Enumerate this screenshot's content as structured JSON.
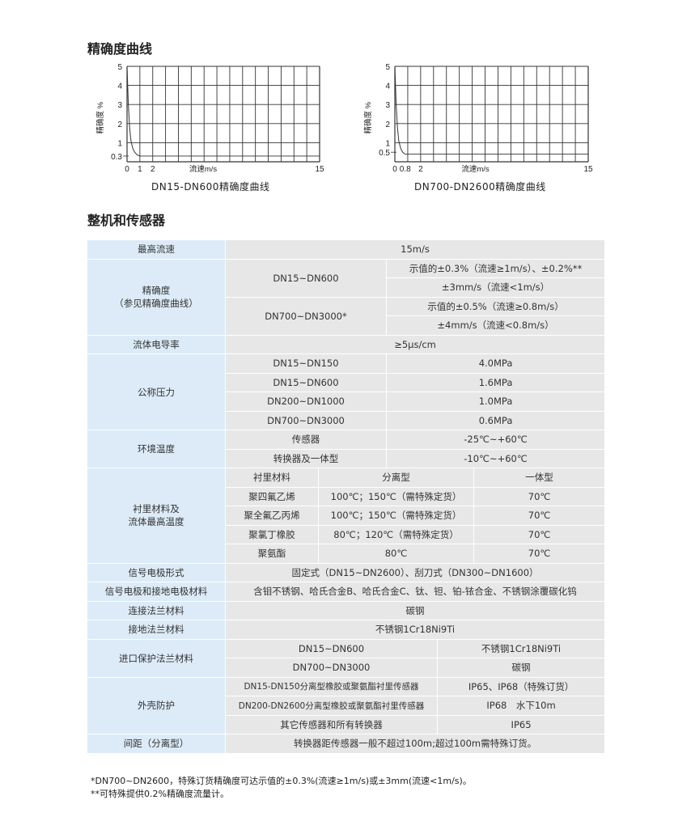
{
  "section1_title": "精确度曲线",
  "section2_title": "整机和传感器",
  "chart_data": [
    {
      "type": "line",
      "title": "DN15-DN600精确度曲线",
      "xlabel": "流速m/s",
      "ylabel": "精确度 %",
      "xticks": [
        "0",
        "1",
        "2",
        "15"
      ],
      "yticks": [
        "5",
        "4",
        "3",
        "2",
        "1",
        "0.3"
      ],
      "xlim": [
        0,
        15
      ],
      "ylim": [
        0,
        5
      ],
      "grid": true,
      "x": [
        0,
        0.05,
        0.1,
        0.2,
        0.3,
        0.45,
        0.6,
        0.8,
        1.0,
        15
      ],
      "y": [
        5,
        4,
        3,
        1.8,
        1.1,
        0.7,
        0.5,
        0.35,
        0.3,
        0.3
      ]
    },
    {
      "type": "line",
      "title": "DN700-DN2600精确度曲线",
      "xlabel": "流速m/s",
      "ylabel": "精确度 %",
      "xticks": [
        "0",
        "0.8",
        "2",
        "15"
      ],
      "yticks": [
        "5",
        "4",
        "3",
        "2",
        "1",
        "0.5"
      ],
      "xlim": [
        0,
        15
      ],
      "ylim": [
        0,
        5
      ],
      "grid": true,
      "x": [
        0,
        0.05,
        0.1,
        0.2,
        0.3,
        0.45,
        0.6,
        0.8,
        15
      ],
      "y": [
        5,
        4,
        3,
        1.8,
        1.1,
        0.7,
        0.5,
        0.4,
        0.4
      ]
    }
  ],
  "table": {
    "max_speed": {
      "k": "最高流速",
      "v": "15m/s"
    },
    "accuracy": {
      "k1": "精确度",
      "k2": "（参见精确度曲线）",
      "a": "DN15~DN600",
      "a1": "示值的±0.3%（流速≥1m/s）、±0.2%**",
      "a2": "±3mm/s（流速<1m/s）",
      "b": "DN700~DN3000*",
      "b1": "示值的±0.5%（流速≥0.8m/s）",
      "b2": "±4mm/s（流速<0.8m/s）"
    },
    "conductivity": {
      "k": "流体电导率",
      "v": "≥5μs/cm"
    },
    "pressure": {
      "k": "公称压力",
      "rows": [
        [
          "DN15~DN150",
          "4.0MPa"
        ],
        [
          "DN15~DN600",
          "1.6MPa"
        ],
        [
          "DN200~DN1000",
          "1.0MPa"
        ],
        [
          "DN700~DN3000",
          "0.6MPa"
        ]
      ]
    },
    "temperature": {
      "k": "环境温度",
      "rows": [
        [
          "传感器",
          "-25℃~+60℃"
        ],
        [
          "转换器及一体型",
          "-10℃~+60℃"
        ]
      ]
    },
    "lining": {
      "k1": "衬里材料及",
      "k2": "流体最高温度",
      "header": [
        "衬里材料",
        "分离型",
        "一体型"
      ],
      "rows": [
        [
          "聚四氟乙烯",
          "100℃；150℃（需特殊定货）",
          "70℃"
        ],
        [
          "聚全氟乙丙烯",
          "100℃；150℃（需特殊定货）",
          "70℃"
        ],
        [
          "聚氯丁橡胶",
          "80℃；120℃（需特殊定货）",
          "70℃"
        ],
        [
          "聚氨酯",
          "80℃",
          "70℃"
        ]
      ]
    },
    "electrode_form": {
      "k": "信号电极形式",
      "v": "固定式（DN15~DN2600）、刮刀式（DN300~DN1600）"
    },
    "electrode_material": {
      "k": "信号电极和接地电极材料",
      "v": "含钼不锈钢、哈氏合金B、哈氏合金C、钛、钽、铂-铱合金、不锈钢涂覆碳化钨"
    },
    "flange": {
      "k": "连接法兰材料",
      "v": "碳钢"
    },
    "ground_flange": {
      "k": "接地法兰材料",
      "v": "不锈钢1Cr18Ni9Ti"
    },
    "inlet": {
      "k": "进口保护法兰材料",
      "rows": [
        [
          "DN15~DN600",
          "不锈钢1Cr18Ni9Ti"
        ],
        [
          "DN700~DN3000",
          "碳钢"
        ]
      ]
    },
    "shell": {
      "k": "外壳防护",
      "rows": [
        [
          "DN15-DN150分离型橡胶或聚氨酯衬里传感器",
          "IP65、IP68（特殊订货）"
        ],
        [
          "DN200-DN2600分离型橡胶或聚氨酯衬里传感器",
          "IP68　水下10m"
        ],
        [
          "其它传感器和所有转换器",
          "IP65"
        ]
      ]
    },
    "distance": {
      "k": "间距（分离型）",
      "v": "转换器距传感器一般不超过100m;超过100m需特殊订货。"
    }
  },
  "notes": [
    "*DN700~DN2600，特殊订货精确度可达示值的±0.3%(流速≥1m/s)或±3mm(流速<1m/s)。",
    "**可特殊提供0.2%精确度流量计。"
  ]
}
